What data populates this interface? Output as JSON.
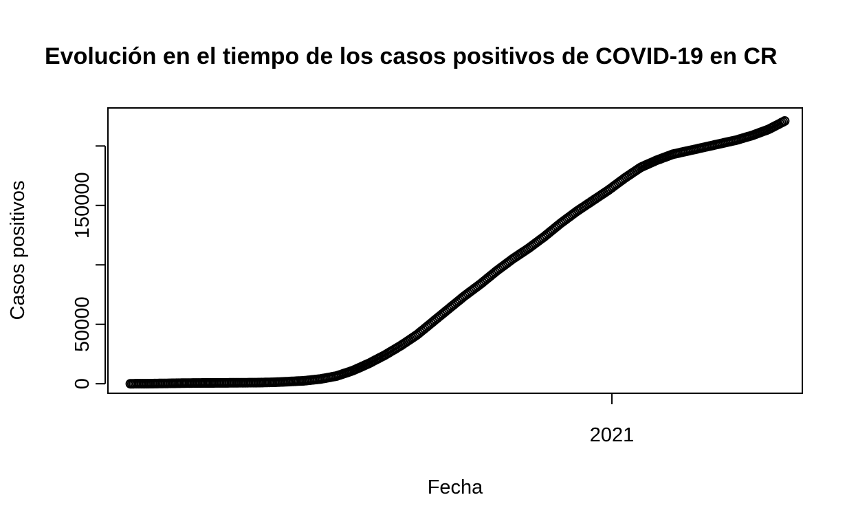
{
  "chart_data": {
    "type": "scatter",
    "title": "Evolución en el tiempo de los casos positivos de COVID-19 en CR",
    "xlabel": "Fecha",
    "ylabel": "Casos positivos",
    "x_ticks": [
      {
        "value": "2021-01-01",
        "label": "2021"
      }
    ],
    "y_ticks": [
      0,
      50000,
      100000,
      150000,
      200000
    ],
    "y_tick_labels_shown": [
      "0",
      "50000",
      "150000"
    ],
    "xlim": [
      "2020-02-21",
      "2021-04-30"
    ],
    "ylim": [
      -8000,
      232000
    ],
    "grid": false,
    "marker": "open-circle",
    "color": "#000000",
    "series": [
      {
        "points": [
          [
            "2020-03-06",
            1
          ],
          [
            "2020-03-15",
            27
          ],
          [
            "2020-03-25",
            201
          ],
          [
            "2020-04-04",
            435
          ],
          [
            "2020-04-14",
            595
          ],
          [
            "2020-04-24",
            686
          ],
          [
            "2020-05-04",
            742
          ],
          [
            "2020-05-14",
            830
          ],
          [
            "2020-05-24",
            930
          ],
          [
            "2020-06-03",
            1200
          ],
          [
            "2020-06-13",
            1800
          ],
          [
            "2020-06-23",
            2500
          ],
          [
            "2020-07-03",
            4000
          ],
          [
            "2020-07-13",
            6500
          ],
          [
            "2020-07-23",
            11000
          ],
          [
            "2020-08-02",
            17000
          ],
          [
            "2020-08-12",
            24000
          ],
          [
            "2020-08-22",
            32000
          ],
          [
            "2020-09-01",
            41000
          ],
          [
            "2020-09-11",
            52000
          ],
          [
            "2020-09-21",
            63000
          ],
          [
            "2020-10-01",
            74000
          ],
          [
            "2020-10-11",
            84000
          ],
          [
            "2020-10-21",
            95000
          ],
          [
            "2020-10-31",
            105000
          ],
          [
            "2020-11-10",
            114000
          ],
          [
            "2020-11-20",
            124000
          ],
          [
            "2020-11-30",
            135000
          ],
          [
            "2020-12-10",
            145000
          ],
          [
            "2020-12-20",
            154000
          ],
          [
            "2020-12-30",
            163000
          ],
          [
            "2021-01-09",
            173000
          ],
          [
            "2021-01-19",
            182000
          ],
          [
            "2021-01-29",
            188000
          ],
          [
            "2021-02-08",
            193000
          ],
          [
            "2021-02-18",
            196000
          ],
          [
            "2021-02-28",
            199000
          ],
          [
            "2021-03-10",
            202000
          ],
          [
            "2021-03-20",
            205000
          ],
          [
            "2021-03-30",
            209000
          ],
          [
            "2021-04-09",
            214000
          ],
          [
            "2021-04-19",
            221000
          ]
        ]
      }
    ]
  }
}
